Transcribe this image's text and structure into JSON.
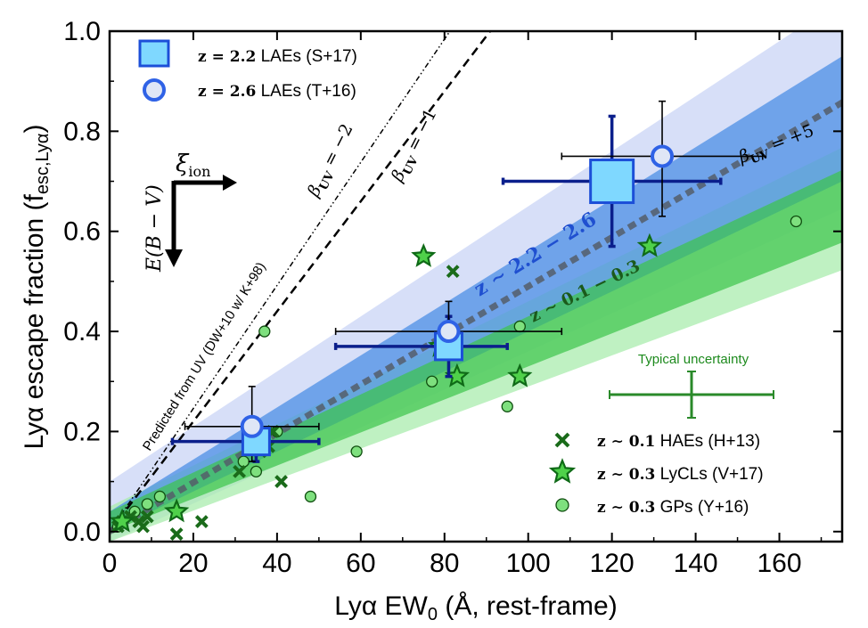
{
  "chart_data": {
    "type": "scatter",
    "xlabel": "Lyα EW",
    "xlabel_sub": "0",
    "xlabel_suffix": " (Å, rest-frame)",
    "ylabel": "Lyα escape fraction (f",
    "ylabel_sub": "esc,Lyα",
    "ylabel_suffix": ")",
    "xlim": [
      0,
      175
    ],
    "ylim": [
      -0.02,
      1.0
    ],
    "x_ticks": [
      "0",
      "20",
      "40",
      "60",
      "80",
      "100",
      "120",
      "140",
      "160"
    ],
    "y_ticks": [
      "0.0",
      "0.2",
      "0.4",
      "0.6",
      "0.8",
      "1.0"
    ],
    "grid": false,
    "legend_top": [
      {
        "label_math": "z = 2.2",
        "label_text": " LAEs (S+17)",
        "marker": "square",
        "color": "#7fd8ff"
      },
      {
        "label_math": "z = 2.6",
        "label_text": " LAEs (T+16)",
        "marker": "circle",
        "color": "#3a6fe8"
      }
    ],
    "legend_bottom": [
      {
        "label_math": "z ∼ 0.1",
        "label_text": " HAEs (H+13)",
        "marker": "x",
        "color": "#1a6b1a"
      },
      {
        "label_math": "z ∼ 0.3",
        "label_text": " LyCLs (V+17)",
        "marker": "star",
        "color": "#3cb043"
      },
      {
        "label_math": "z ∼ 0.3",
        "label_text": " GPs (Y+16)",
        "marker": "dot",
        "color": "#7ee07e"
      }
    ],
    "series": [
      {
        "name": "z = 2.2 LAEs (S+17)",
        "marker": "square",
        "points": [
          {
            "x": 35,
            "y": 0.18,
            "xerr": [
              20,
              15
            ],
            "yerr": [
              0.04,
              0.04
            ]
          },
          {
            "x": 81,
            "y": 0.37,
            "xerr": [
              27,
              14
            ],
            "yerr": [
              0.06,
              0.06
            ]
          },
          {
            "x": 120,
            "y": 0.7,
            "xerr": [
              26,
              26
            ],
            "yerr": [
              0.13,
              0.13
            ]
          }
        ]
      },
      {
        "name": "z = 2.6 LAEs (T+16)",
        "marker": "circle",
        "points": [
          {
            "x": 34,
            "y": 0.21,
            "xerr": [
              16,
              16
            ],
            "yerr": [
              0.07,
              0.08
            ]
          },
          {
            "x": 81,
            "y": 0.4,
            "xerr": [
              27,
              27
            ],
            "yerr": [
              0.05,
              0.06
            ]
          },
          {
            "x": 132,
            "y": 0.75,
            "xerr": [
              24,
              24
            ],
            "yerr": [
              0.12,
              0.11
            ]
          }
        ]
      },
      {
        "name": "z ∼ 0.1 HAEs (H+13)",
        "marker": "x",
        "points": [
          {
            "x": 2,
            "y": 0.01
          },
          {
            "x": 3,
            "y": 0.02
          },
          {
            "x": 5,
            "y": 0.03
          },
          {
            "x": 7,
            "y": 0.02
          },
          {
            "x": 8,
            "y": 0.01
          },
          {
            "x": 9,
            "y": 0.03
          },
          {
            "x": 16,
            "y": -0.005
          },
          {
            "x": 22,
            "y": 0.02
          },
          {
            "x": 31,
            "y": 0.12
          },
          {
            "x": 36,
            "y": 0.16
          },
          {
            "x": 38,
            "y": 0.17
          },
          {
            "x": 39,
            "y": 0.2
          },
          {
            "x": 41,
            "y": 0.1
          },
          {
            "x": 82,
            "y": 0.52
          }
        ]
      },
      {
        "name": "z ∼ 0.3 LyCLs (V+17)",
        "marker": "star",
        "points": [
          {
            "x": 3,
            "y": 0.02
          },
          {
            "x": 16,
            "y": 0.04
          },
          {
            "x": 75,
            "y": 0.55
          },
          {
            "x": 79,
            "y": 0.37
          },
          {
            "x": 83,
            "y": 0.31
          },
          {
            "x": 98,
            "y": 0.31
          },
          {
            "x": 129,
            "y": 0.57
          }
        ]
      },
      {
        "name": "z ∼ 0.3 GPs (Y+16)",
        "marker": "dot",
        "points": [
          {
            "x": 2,
            "y": 0.01
          },
          {
            "x": 6,
            "y": 0.04
          },
          {
            "x": 9,
            "y": 0.055
          },
          {
            "x": 12,
            "y": 0.07
          },
          {
            "x": 32,
            "y": 0.14
          },
          {
            "x": 35,
            "y": 0.12
          },
          {
            "x": 37,
            "y": 0.4
          },
          {
            "x": 40,
            "y": 0.2
          },
          {
            "x": 48,
            "y": 0.07
          },
          {
            "x": 59,
            "y": 0.16
          },
          {
            "x": 77,
            "y": 0.3
          },
          {
            "x": 95,
            "y": 0.25
          },
          {
            "x": 98,
            "y": 0.41
          },
          {
            "x": 164,
            "y": 0.62
          }
        ]
      }
    ],
    "fits": [
      {
        "label": "z ∼ 2.2 − 2.6",
        "color": "#2e6fd8",
        "slope": 0.0047,
        "intercept": 0.02
      },
      {
        "label": "z ∼ 0.1 − 0.3",
        "color": "#2faa3a",
        "slope": 0.0037,
        "intercept": 0.02
      }
    ],
    "prediction_lines": [
      {
        "label": "βUV = −1",
        "style": "dashed",
        "slope": 0.011
      },
      {
        "label": "βUV = −2",
        "style": "dashdot",
        "slope": 0.0123
      },
      {
        "label": "βUV = +5",
        "style": "dotted-thick",
        "slope": 0.0049
      }
    ],
    "annotations": {
      "predicted_from_uv": "Predicted from UV (DW+10 w/ K+98)",
      "typical_uncertainty": "Typical uncertainty",
      "xi_ion": "ξ",
      "xi_ion_sub": "ion",
      "ebv": "E(B − V)"
    },
    "colors": {
      "high_z_band": "#4c8fe6",
      "low_z_band": "#3cc44a",
      "errorbar_dark": "#0b1f8c",
      "uncertainty": "#2a8a2a"
    }
  }
}
